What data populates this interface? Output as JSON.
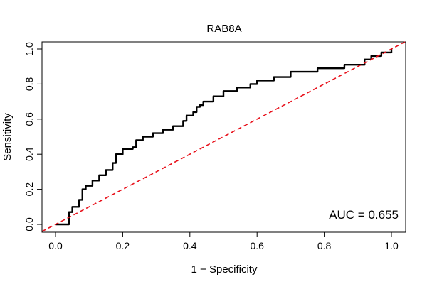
{
  "chart_data": {
    "type": "line",
    "title": "RAB8A",
    "xlabel": "1 − Specificity",
    "ylabel": "Sensitivity",
    "xlim": [
      0,
      1
    ],
    "ylim": [
      0,
      1
    ],
    "x_ticks": [
      0.0,
      0.2,
      0.4,
      0.6,
      0.8,
      1.0
    ],
    "y_ticks": [
      0.0,
      0.2,
      0.4,
      0.6,
      0.8,
      1.0
    ],
    "x_tick_labels": [
      "0.0",
      "0.2",
      "0.4",
      "0.6",
      "0.8",
      "1.0"
    ],
    "y_tick_labels": [
      "0.0",
      "0.2",
      "0.4",
      "0.6",
      "0.8",
      "1.0"
    ],
    "annotation": "AUC = 0.655",
    "series": [
      {
        "color": "#000000",
        "style": "solid",
        "x": [
          0.0,
          0.03,
          0.04,
          0.05,
          0.07,
          0.08,
          0.09,
          0.11,
          0.13,
          0.15,
          0.17,
          0.18,
          0.2,
          0.23,
          0.24,
          0.26,
          0.29,
          0.32,
          0.35,
          0.38,
          0.39,
          0.41,
          0.42,
          0.43,
          0.44,
          0.47,
          0.5,
          0.54,
          0.58,
          0.6,
          0.65,
          0.7,
          0.78,
          0.86,
          0.92,
          0.94,
          0.97,
          1.0
        ],
        "y": [
          0.0,
          0.0,
          0.07,
          0.1,
          0.14,
          0.2,
          0.22,
          0.25,
          0.28,
          0.31,
          0.35,
          0.4,
          0.43,
          0.44,
          0.48,
          0.5,
          0.52,
          0.54,
          0.56,
          0.59,
          0.62,
          0.64,
          0.67,
          0.68,
          0.7,
          0.73,
          0.76,
          0.78,
          0.8,
          0.82,
          0.84,
          0.87,
          0.89,
          0.91,
          0.94,
          0.96,
          0.98,
          1.0
        ]
      },
      {
        "color": "#e8101a",
        "style": "dashed",
        "x": [
          0,
          1
        ],
        "y": [
          0,
          1
        ]
      }
    ],
    "grid": false,
    "legend": "none"
  }
}
